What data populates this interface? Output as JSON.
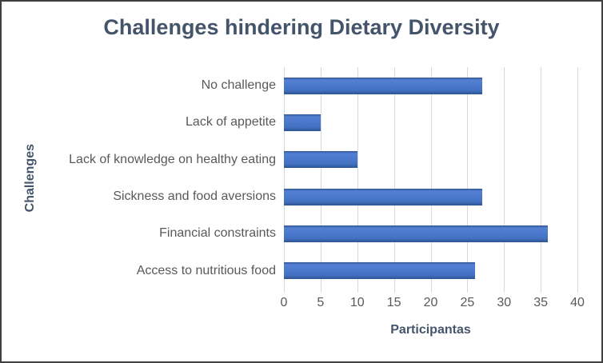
{
  "figure": {
    "background": "#ffffff",
    "border_color": "#3f3f3f"
  },
  "chart_data": {
    "type": "bar",
    "orientation": "horizontal",
    "title": "Challenges hindering Dietary Diversity",
    "xlabel": "Participantas",
    "ylabel": "Challenges",
    "categories": [
      "No challenge",
      "Lack of appetite",
      "Lack of knowledge on healthy eating",
      "Sickness and food aversions",
      "Financial constraints",
      "Access to nutritious food"
    ],
    "values": [
      27,
      5,
      10,
      27,
      36,
      26
    ],
    "xlim": [
      0,
      40
    ],
    "xticks": [
      0,
      5,
      10,
      15,
      20,
      25,
      30,
      35,
      40
    ],
    "grid": "vertical-gridlines-on",
    "legend": "none",
    "colors": {
      "bar": "#4472C4",
      "bar_edge": "#2E5493",
      "gridline": "#D9D9D9",
      "title": "#44546A",
      "axis_title": "#44546A",
      "tick_label": "#595959",
      "category_label": "#595959"
    }
  }
}
